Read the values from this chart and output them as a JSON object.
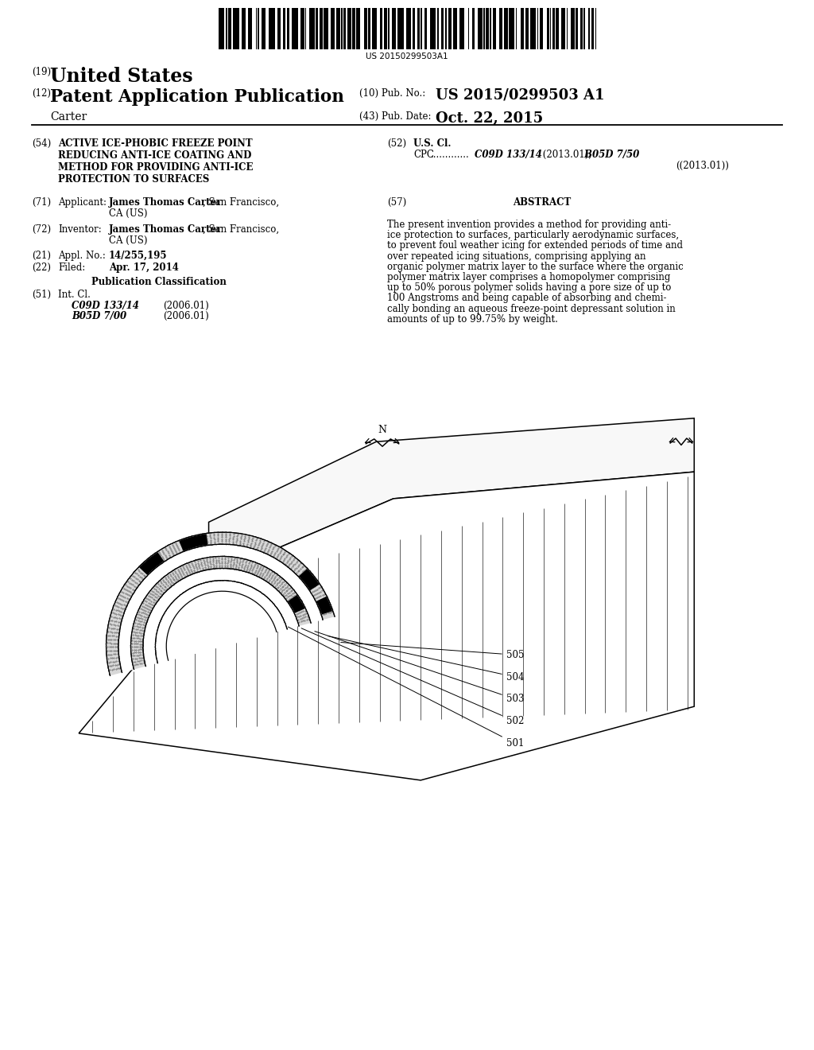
{
  "bg": "#ffffff",
  "barcode_num": "US 20150299503A1",
  "h_country": "United States",
  "h_type": "Patent Application Publication",
  "h_pub_label": "(10) Pub. No.:",
  "h_pub": "US 2015/0299503 A1",
  "h_name": "Carter",
  "h_date_label": "(43) Pub. Date:",
  "h_date": "Oct. 22, 2015",
  "s54_title": "ACTIVE ICE-PHOBIC FREEZE POINT\nREDUCING ANTI-ICE COATING AND\nMETHOD FOR PROVIDING ANTI-ICE\nPROTECTION TO SURFACES",
  "s71_bold": "James Thomas Carter",
  "s71_rest": ", San Francisco,",
  "s71_city": "CA (US)",
  "s72_bold": "James Thomas Carter",
  "s72_rest": ", San Francisco,",
  "s72_city": "CA (US)",
  "s21_no": "14/255,195",
  "s22_date": "Apr. 17, 2014",
  "s51_c1": "C09D 133/14",
  "s51_c1_date": "(2006.01)",
  "s51_c2": "B05D 7/00",
  "s51_c2_date": "(2006.01)",
  "s52_cpc1_italic": "C09D 133/14",
  "s52_cpc1_date": "(2013.01);",
  "s52_cpc2_italic": "B05D 7/50",
  "s52_cpc2_date": "(2013.01)",
  "abstract_lines": [
    "The present invention provides a method for providing anti-",
    "ice protection to surfaces, particularly aerodynamic surfaces,",
    "to prevent foul weather icing for extended periods of time and",
    "over repeated icing situations, comprising applying an",
    "organic polymer matrix layer to the surface where the organic",
    "polymer matrix layer comprises a homopolymer comprising",
    "up to 50% porous polymer solids having a pore size of up to",
    "100 Angstroms and being capable of absorbing and chemi-",
    "cally bonding an aqueous freeze-point depressant solution in",
    "amounts of up to 99.75% by weight."
  ],
  "labels": [
    "505",
    "504",
    "503",
    "502",
    "501"
  ]
}
